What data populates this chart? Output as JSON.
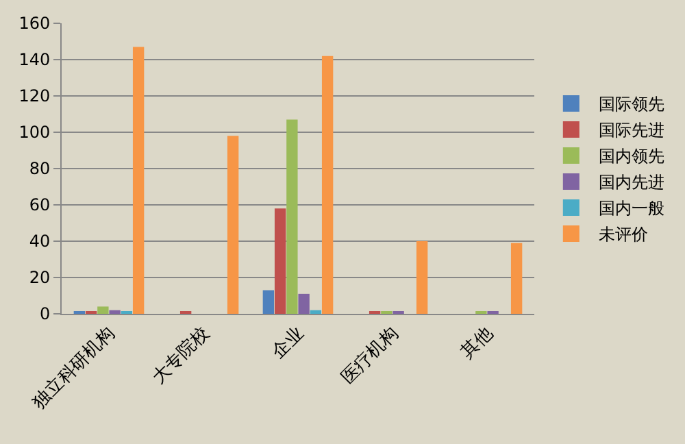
{
  "chart_data": {
    "type": "bar",
    "categories": [
      "独立科研机构",
      "大专院校",
      "企业",
      "医疗机构",
      "其他"
    ],
    "series": [
      {
        "name": "国际领先",
        "color": "#4f81bd",
        "values": [
          1,
          0,
          13,
          0,
          0
        ]
      },
      {
        "name": "国际先进",
        "color": "#c0504d",
        "values": [
          1,
          1,
          58,
          1,
          0
        ]
      },
      {
        "name": "国内领先",
        "color": "#9bbb59",
        "values": [
          4,
          0,
          107,
          1,
          1
        ]
      },
      {
        "name": "国内先进",
        "color": "#8064a2",
        "values": [
          2,
          0,
          11,
          1,
          1
        ]
      },
      {
        "name": "国内一般",
        "color": "#4bacc6",
        "values": [
          1,
          0,
          2,
          0,
          0
        ]
      },
      {
        "name": "未评价",
        "color": "#f79646",
        "values": [
          147,
          98,
          142,
          40,
          39
        ]
      }
    ],
    "ylim": [
      0,
      160
    ],
    "yticks": [
      0,
      20,
      40,
      60,
      80,
      100,
      120,
      140,
      160
    ],
    "grid": "y",
    "legend": "right"
  }
}
